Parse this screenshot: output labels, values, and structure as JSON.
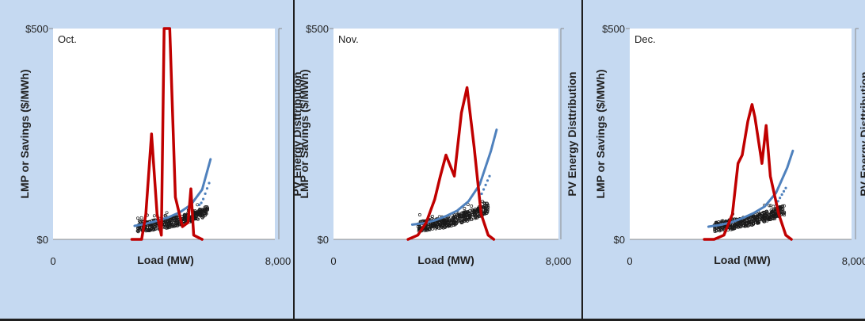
{
  "chart_data": [
    {
      "type": "line",
      "annotation": "Oct.",
      "xlabel": "Load (MW)",
      "ylabel": "LMP or Savings ($/MWh)",
      "y2label": "PV Energy Disttribution",
      "xlim": [
        0,
        8000
      ],
      "ylim": [
        0,
        500
      ],
      "x_tick_labels": [
        "0",
        "8,000"
      ],
      "y_tick_labels": [
        "$0",
        "$500"
      ],
      "colors": {
        "distribution": "#c00000",
        "fit": "#4f81bd",
        "scatter": "#1a1a1a"
      },
      "series": [
        {
          "role": "distribution",
          "x": [
            2800,
            3150,
            3300,
            3500,
            3700,
            3850,
            3950,
            4150,
            4350,
            4600,
            4800,
            4900,
            5000,
            5300
          ],
          "y": [
            0,
            0,
            60,
            250,
            60,
            10,
            500,
            500,
            100,
            30,
            40,
            120,
            10,
            0
          ]
        },
        {
          "role": "fit",
          "x": [
            2900,
            3300,
            3700,
            4100,
            4500,
            4900,
            5300,
            5600
          ],
          "y": [
            32,
            37,
            44,
            52,
            64,
            82,
            118,
            190
          ]
        },
        {
          "role": "scatter",
          "x": [
            3000,
            3500,
            4000,
            4500,
            5000,
            5500
          ],
          "y": [
            30,
            33,
            38,
            45,
            55,
            68
          ]
        }
      ]
    },
    {
      "type": "line",
      "annotation": "Nov.",
      "xlabel": "Load (MW)",
      "ylabel": "LMP or Savings ($/MWh)",
      "y2label": "PV Energy Disttribution",
      "xlim": [
        0,
        8000
      ],
      "ylim": [
        0,
        500
      ],
      "x_tick_labels": [
        "0",
        "8,000"
      ],
      "y_tick_labels": [
        "$0",
        "$500"
      ],
      "colors": {
        "distribution": "#c00000",
        "fit": "#4f81bd",
        "scatter": "#1a1a1a"
      },
      "series": [
        {
          "role": "distribution",
          "x": [
            2650,
            3000,
            3300,
            3600,
            3800,
            4000,
            4300,
            4550,
            4750,
            5000,
            5250,
            5500,
            5700
          ],
          "y": [
            0,
            10,
            40,
            95,
            150,
            200,
            150,
            300,
            360,
            220,
            60,
            10,
            0
          ]
        },
        {
          "role": "fit",
          "x": [
            2800,
            3200,
            3600,
            4000,
            4400,
            4800,
            5200,
            5600,
            5800
          ],
          "y": [
            35,
            38,
            45,
            55,
            68,
            90,
            130,
            210,
            260
          ]
        },
        {
          "role": "scatter",
          "x": [
            3000,
            3500,
            4000,
            4500,
            5000,
            5500
          ],
          "y": [
            30,
            35,
            40,
            50,
            60,
            75
          ]
        }
      ]
    },
    {
      "type": "line",
      "annotation": "Dec.",
      "xlabel": "Load (MW)",
      "ylabel": "LMP or Savings ($/MWh)",
      "y2label": "PV Energy Disttribution",
      "xlim": [
        0,
        8000
      ],
      "ylim": [
        0,
        500
      ],
      "x_tick_labels": [
        "0",
        "8,000"
      ],
      "y_tick_labels": [
        "$0",
        "$500"
      ],
      "colors": {
        "distribution": "#c00000",
        "fit": "#4f81bd",
        "scatter": "#1a1a1a"
      },
      "series": [
        {
          "role": "distribution",
          "x": [
            2650,
            3000,
            3350,
            3650,
            3850,
            4000,
            4200,
            4350,
            4450,
            4700,
            4850,
            5000,
            5300,
            5550,
            5750
          ],
          "y": [
            0,
            0,
            10,
            60,
            180,
            200,
            280,
            320,
            290,
            180,
            270,
            150,
            60,
            10,
            0
          ]
        },
        {
          "role": "fit",
          "x": [
            2800,
            3200,
            3600,
            4000,
            4400,
            4800,
            5200,
            5600,
            5800
          ],
          "y": [
            30,
            34,
            40,
            50,
            62,
            78,
            110,
            170,
            210
          ]
        },
        {
          "role": "scatter",
          "x": [
            3000,
            3500,
            4000,
            4500,
            5000,
            5500
          ],
          "y": [
            30,
            34,
            40,
            48,
            57,
            70
          ]
        }
      ]
    }
  ]
}
